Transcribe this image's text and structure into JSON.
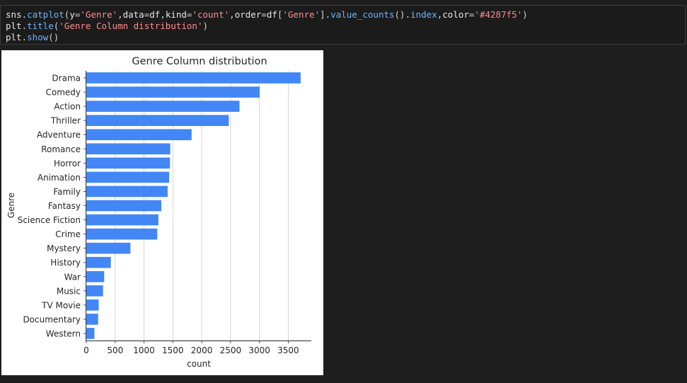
{
  "code_cell": {
    "lines": [
      [
        {
          "t": "sns",
          "c": "default"
        },
        {
          "t": ".",
          "c": "op"
        },
        {
          "t": "catplot",
          "c": "func"
        },
        {
          "t": "(",
          "c": "op"
        },
        {
          "t": "y",
          "c": "default"
        },
        {
          "t": "=",
          "c": "op"
        },
        {
          "t": "'Genre'",
          "c": "str"
        },
        {
          "t": ",",
          "c": "op"
        },
        {
          "t": "data",
          "c": "default"
        },
        {
          "t": "=",
          "c": "op"
        },
        {
          "t": "df",
          "c": "default"
        },
        {
          "t": ",",
          "c": "op"
        },
        {
          "t": "kind",
          "c": "default"
        },
        {
          "t": "=",
          "c": "op"
        },
        {
          "t": "'count'",
          "c": "str"
        },
        {
          "t": ",",
          "c": "op"
        },
        {
          "t": "order",
          "c": "default"
        },
        {
          "t": "=",
          "c": "op"
        },
        {
          "t": "df",
          "c": "default"
        },
        {
          "t": "[",
          "c": "op"
        },
        {
          "t": "'Genre'",
          "c": "str"
        },
        {
          "t": "].",
          "c": "op"
        },
        {
          "t": "value_counts",
          "c": "func"
        },
        {
          "t": "().",
          "c": "op"
        },
        {
          "t": "index",
          "c": "func"
        },
        {
          "t": ",",
          "c": "op"
        },
        {
          "t": "color",
          "c": "default"
        },
        {
          "t": "=",
          "c": "op"
        },
        {
          "t": "'#4287f5'",
          "c": "str"
        },
        {
          "t": ")",
          "c": "op"
        }
      ],
      [
        {
          "t": "plt",
          "c": "default"
        },
        {
          "t": ".",
          "c": "op"
        },
        {
          "t": "title",
          "c": "func"
        },
        {
          "t": "(",
          "c": "op"
        },
        {
          "t": "'Genre Column distribution'",
          "c": "str"
        },
        {
          "t": ")",
          "c": "op"
        }
      ],
      [
        {
          "t": "plt",
          "c": "default"
        },
        {
          "t": ".",
          "c": "op"
        },
        {
          "t": "show",
          "c": "func"
        },
        {
          "t": "()",
          "c": "op"
        }
      ]
    ]
  },
  "colors": {
    "bar": "#4287f5",
    "grid": "#cccccc",
    "text": "#262626",
    "axis": "#262626"
  },
  "chart_data": {
    "type": "bar",
    "orientation": "horizontal",
    "title": "Genre Column distribution",
    "xlabel": "count",
    "ylabel": "Genre",
    "categories": [
      "Drama",
      "Comedy",
      "Action",
      "Thriller",
      "Adventure",
      "Romance",
      "Horror",
      "Animation",
      "Family",
      "Fantasy",
      "Science Fiction",
      "Crime",
      "Mystery",
      "History",
      "War",
      "Music",
      "TV Movie",
      "Documentary",
      "Western"
    ],
    "values": [
      3715,
      3005,
      2655,
      2470,
      1825,
      1455,
      1450,
      1435,
      1410,
      1300,
      1250,
      1230,
      765,
      425,
      310,
      290,
      215,
      205,
      140
    ],
    "xticks": [
      0,
      500,
      1000,
      1500,
      2000,
      2500,
      3000,
      3500
    ],
    "xlim": [
      0,
      3900
    ],
    "grid": "vertical",
    "color": "#4287f5"
  }
}
